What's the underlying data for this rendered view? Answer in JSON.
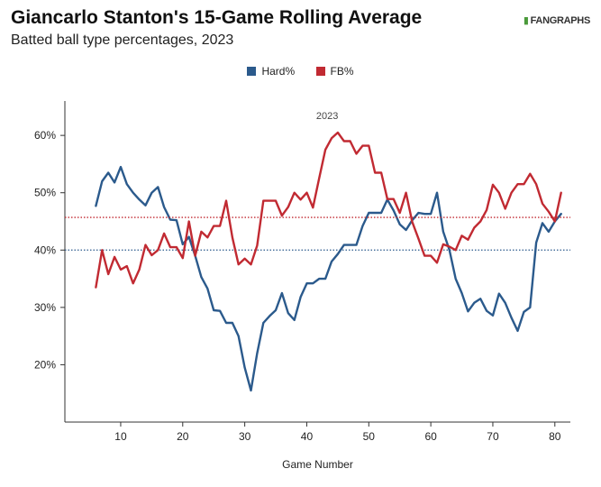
{
  "header": {
    "title": "Giancarlo Stanton's 15-Game Rolling Average",
    "subtitle": "Batted ball type percentages, 2023",
    "brand": "FANGRAPHS"
  },
  "chart_data": {
    "type": "line",
    "title": "Giancarlo Stanton's 15-Game Rolling Average",
    "subtitle": "Batted ball type percentages, 2023",
    "annotation": "2023",
    "xlabel": "Game Number",
    "ylabel": "",
    "xlim": [
      1,
      82.5
    ],
    "ylim": [
      10,
      66
    ],
    "xticks": [
      10,
      20,
      30,
      40,
      50,
      60,
      70,
      80
    ],
    "yticks": [
      20,
      30,
      40,
      50,
      60
    ],
    "ytick_labels": [
      "20%",
      "30%",
      "40%",
      "50%",
      "60%"
    ],
    "grid": false,
    "legend_position": "top-center",
    "x": [
      6,
      7,
      8,
      9,
      10,
      11,
      12,
      13,
      14,
      15,
      16,
      17,
      18,
      19,
      20,
      21,
      22,
      23,
      24,
      25,
      26,
      27,
      28,
      29,
      30,
      31,
      32,
      33,
      34,
      35,
      36,
      37,
      38,
      39,
      40,
      41,
      42,
      43,
      44,
      45,
      46,
      47,
      48,
      49,
      50,
      51,
      52,
      53,
      54,
      55,
      56,
      57,
      58,
      59,
      60,
      61,
      62,
      63,
      64,
      65,
      66,
      67,
      68,
      69,
      70,
      71,
      72,
      73,
      74,
      75,
      76,
      77,
      78,
      79,
      80,
      81
    ],
    "series": [
      {
        "name": "Hard%",
        "color": "#2b5a8c",
        "average": 40.0,
        "values": [
          47.7,
          52.0,
          53.5,
          51.8,
          54.5,
          51.5,
          50.0,
          48.8,
          47.8,
          50.0,
          51.0,
          47.5,
          45.3,
          45.2,
          41.0,
          42.3,
          39.0,
          35.3,
          33.3,
          29.5,
          29.4,
          27.3,
          27.3,
          25.0,
          19.5,
          15.5,
          22.0,
          27.3,
          28.5,
          29.5,
          32.5,
          29.0,
          27.8,
          31.8,
          34.2,
          34.2,
          35.0,
          35.0,
          38.0,
          39.3,
          40.9,
          40.9,
          40.9,
          44.2,
          46.5,
          46.5,
          46.5,
          48.8,
          46.9,
          44.5,
          43.5,
          45.2,
          46.5,
          46.3,
          46.3,
          50.0,
          43.2,
          40.0,
          35.0,
          32.5,
          29.3,
          30.8,
          31.5,
          29.4,
          28.6,
          32.4,
          30.8,
          28.2,
          25.9,
          29.2,
          30.0,
          41.3,
          44.7,
          43.2,
          45.0,
          46.3
        ]
      },
      {
        "name": "FB%",
        "color": "#c12a32",
        "average": 45.7,
        "values": [
          33.5,
          40.0,
          35.8,
          38.8,
          36.6,
          37.2,
          34.2,
          36.6,
          40.9,
          39.1,
          40.0,
          42.9,
          40.5,
          40.5,
          38.6,
          45.0,
          39.0,
          43.2,
          42.2,
          44.2,
          44.2,
          48.6,
          42.2,
          37.5,
          38.5,
          37.5,
          40.8,
          48.6,
          48.6,
          48.6,
          46.0,
          47.5,
          50.0,
          48.8,
          50.0,
          47.4,
          52.5,
          57.5,
          59.5,
          60.5,
          59.0,
          59.0,
          56.8,
          58.2,
          58.2,
          53.5,
          53.5,
          48.9,
          48.9,
          46.5,
          50.0,
          44.9,
          42.0,
          39.0,
          39.0,
          37.8,
          41.0,
          40.6,
          40.0,
          42.5,
          41.8,
          43.9,
          45.0,
          47.0,
          51.4,
          50.0,
          47.2,
          50.0,
          51.5,
          51.5,
          53.3,
          51.5,
          48.1,
          46.7,
          45.0,
          50.0
        ]
      }
    ]
  }
}
